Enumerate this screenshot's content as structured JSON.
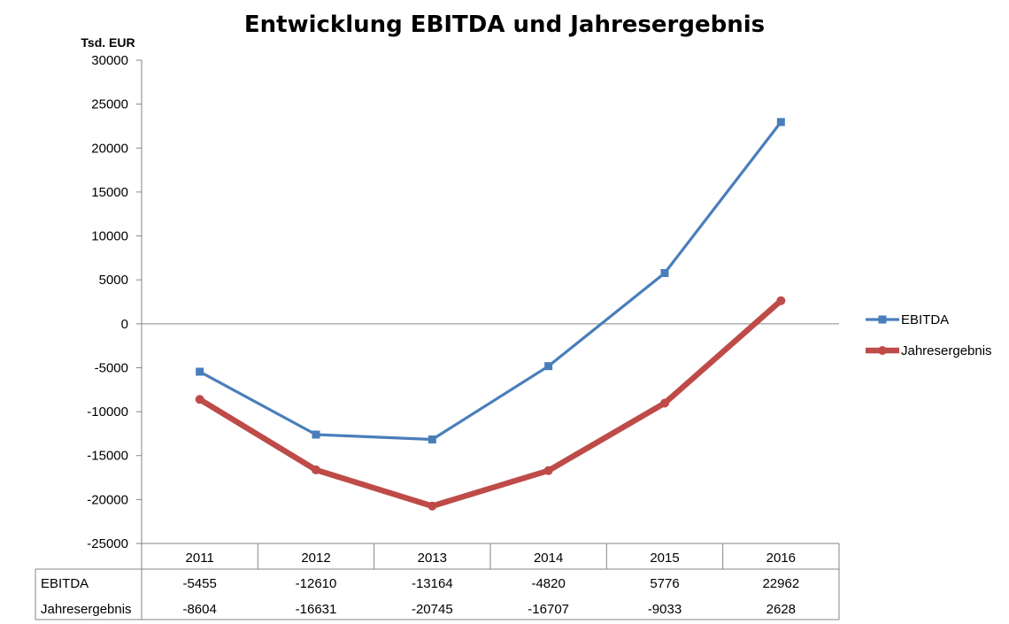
{
  "chart_data": {
    "type": "line",
    "title": "Entwicklung EBITDA und Jahresergebnis",
    "unit_label": "Tsd. EUR",
    "categories": [
      "2011",
      "2012",
      "2013",
      "2014",
      "2015",
      "2016"
    ],
    "ylim": [
      -25000,
      30000
    ],
    "yticks": [
      30000,
      25000,
      20000,
      15000,
      10000,
      5000,
      0,
      -5000,
      -10000,
      -15000,
      -20000,
      -25000
    ],
    "grid": false,
    "legend_position": "right",
    "series": [
      {
        "name": "EBITDA",
        "color": "#4a7ebb",
        "marker": "square",
        "values": [
          -5455,
          -12610,
          -13164,
          -4820,
          5776,
          22962
        ],
        "table_values": [
          "-5455",
          "-12610",
          "-13164",
          "-4820",
          "5776",
          "22962"
        ]
      },
      {
        "name": "Jahresergebnis",
        "color": "#be4b48",
        "marker": "circle",
        "values": [
          -8604,
          -16631,
          -20745,
          -16707,
          -9033,
          2628
        ],
        "table_values": [
          "-8604",
          "-16631",
          "-20745",
          "-16707",
          "-9033",
          "2628"
        ]
      }
    ]
  }
}
